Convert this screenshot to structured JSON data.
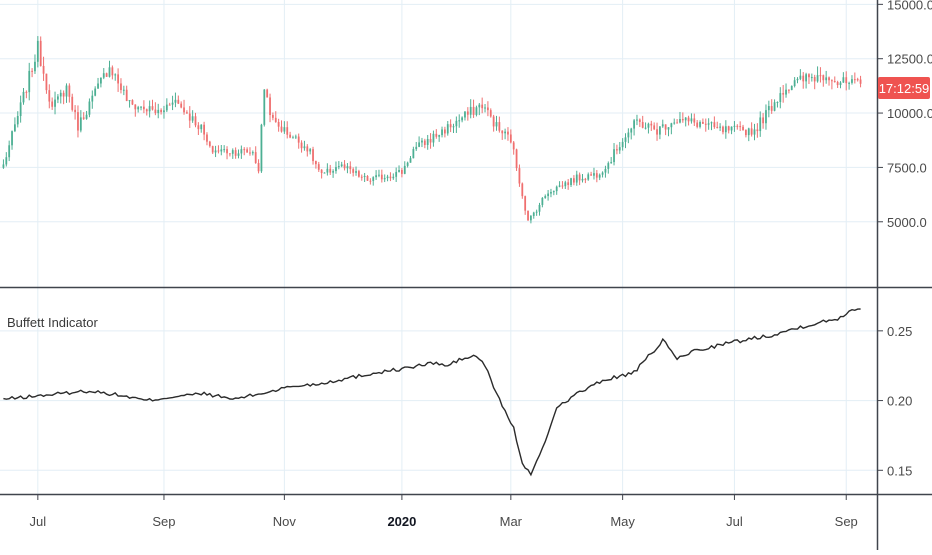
{
  "colors": {
    "up": "#4caf93",
    "down": "#ef6f6f",
    "grid": "#e3eef5",
    "axis_text": "#4a4a4a",
    "separator": "#40444d",
    "indicator_line": "#2b2b2b",
    "price_badge_bg": "#ef5350",
    "price_badge_text": "#ffffff"
  },
  "chart_data": [
    {
      "type": "candlestick",
      "title": "",
      "y_ticks": [
        "15000.0",
        "12500.0",
        "10000.0",
        "7500.0",
        "5000.0"
      ],
      "y_tick_values": [
        15000,
        12500,
        10000,
        7500,
        5000
      ],
      "ylim": [
        2000,
        15200
      ],
      "price_badge": "17:12:59",
      "grid": true,
      "candle_count": 300,
      "x_month_labels": [
        "Jul",
        "Sep",
        "Nov",
        "2020",
        "Mar",
        "May",
        "Jul",
        "Sep"
      ],
      "x_month_index": [
        12,
        56,
        98,
        139,
        177,
        216,
        255,
        294
      ],
      "key_closes": [
        [
          0,
          7600
        ],
        [
          12,
          13000
        ],
        [
          17,
          10200
        ],
        [
          22,
          11200
        ],
        [
          26,
          9400
        ],
        [
          37,
          12200
        ],
        [
          44,
          10400
        ],
        [
          55,
          10000
        ],
        [
          59,
          10700
        ],
        [
          69,
          9300
        ],
        [
          72,
          8300
        ],
        [
          87,
          8200
        ],
        [
          89,
          7400
        ],
        [
          91,
          11200
        ],
        [
          94,
          9600
        ],
        [
          106,
          8400
        ],
        [
          111,
          7100
        ],
        [
          117,
          7600
        ],
        [
          127,
          6900
        ],
        [
          139,
          7300
        ],
        [
          143,
          8300
        ],
        [
          157,
          9500
        ],
        [
          167,
          10400
        ],
        [
          173,
          9200
        ],
        [
          177,
          8800
        ],
        [
          183,
          5000
        ],
        [
          190,
          6400
        ],
        [
          200,
          7000
        ],
        [
          207,
          7200
        ],
        [
          211,
          7700
        ],
        [
          216,
          8800
        ],
        [
          221,
          9600
        ],
        [
          228,
          9200
        ],
        [
          234,
          9700
        ],
        [
          244,
          9500
        ],
        [
          250,
          9200
        ],
        [
          262,
          9200
        ],
        [
          272,
          11100
        ],
        [
          280,
          11600
        ],
        [
          288,
          11800
        ],
        [
          291,
          11400
        ],
        [
          298,
          11300
        ]
      ]
    },
    {
      "type": "line",
      "title": "Buffett Indicator",
      "y_ticks": [
        "0.25",
        "0.20",
        "0.15"
      ],
      "y_tick_values": [
        0.25,
        0.2,
        0.15
      ],
      "ylim": [
        0.133,
        0.28
      ],
      "grid": true,
      "key_points": [
        [
          0,
          0.201
        ],
        [
          10,
          0.203
        ],
        [
          20,
          0.205
        ],
        [
          30,
          0.207
        ],
        [
          40,
          0.204
        ],
        [
          50,
          0.2
        ],
        [
          60,
          0.203
        ],
        [
          70,
          0.205
        ],
        [
          80,
          0.201
        ],
        [
          90,
          0.205
        ],
        [
          100,
          0.21
        ],
        [
          110,
          0.212
        ],
        [
          120,
          0.216
        ],
        [
          130,
          0.22
        ],
        [
          140,
          0.223
        ],
        [
          150,
          0.227
        ],
        [
          155,
          0.225
        ],
        [
          160,
          0.23
        ],
        [
          165,
          0.232
        ],
        [
          168,
          0.225
        ],
        [
          172,
          0.205
        ],
        [
          178,
          0.18
        ],
        [
          181,
          0.155
        ],
        [
          184,
          0.147
        ],
        [
          188,
          0.165
        ],
        [
          193,
          0.195
        ],
        [
          200,
          0.205
        ],
        [
          210,
          0.215
        ],
        [
          220,
          0.22
        ],
        [
          230,
          0.243
        ],
        [
          235,
          0.23
        ],
        [
          240,
          0.235
        ],
        [
          250,
          0.24
        ],
        [
          260,
          0.244
        ],
        [
          270,
          0.248
        ],
        [
          280,
          0.254
        ],
        [
          290,
          0.258
        ],
        [
          297,
          0.266
        ]
      ]
    }
  ]
}
